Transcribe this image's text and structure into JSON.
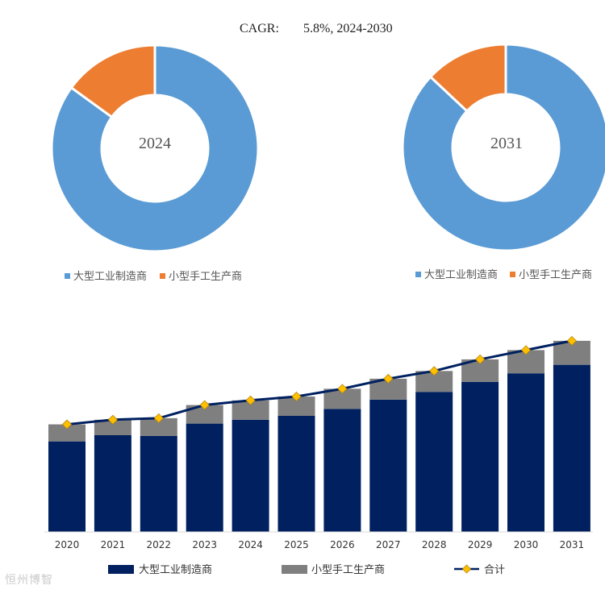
{
  "cagr": {
    "label": "CAGR:",
    "value": "5.8%, 2024-2030"
  },
  "colors": {
    "large": "#5b9bd5",
    "small": "#ed7d31",
    "bar_large": "#002060",
    "bar_small": "#7f7f7f",
    "line": "#002060",
    "marker": "#ffc000"
  },
  "chart_data": [
    {
      "type": "pie",
      "title": "2024",
      "labels": [
        "大型工业制造商",
        "小型手工生产商"
      ],
      "values": [
        85,
        15
      ]
    },
    {
      "type": "pie",
      "title": "2031",
      "labels": [
        "大型工业制造商",
        "小型手工生产商"
      ],
      "values": [
        87,
        13
      ]
    },
    {
      "type": "bar",
      "stacked": true,
      "categories": [
        "2020",
        "2021",
        "2022",
        "2023",
        "2024",
        "2025",
        "2026",
        "2027",
        "2028",
        "2029",
        "2030",
        "2031"
      ],
      "series": [
        {
          "name": "大型工业制造商",
          "values": [
            117,
            125,
            124,
            140,
            145,
            150,
            159,
            171,
            181,
            194,
            205,
            216
          ]
        },
        {
          "name": "小型手工生产商",
          "values": [
            22,
            20,
            23,
            24,
            25,
            25,
            26,
            27,
            27,
            29,
            30,
            31
          ]
        }
      ],
      "line": {
        "name": "合计",
        "values": [
          139,
          145,
          147,
          164,
          170,
          175,
          185,
          198,
          208,
          223,
          235,
          247
        ]
      },
      "ylim": [
        0,
        260
      ],
      "legend": "bottom"
    }
  ],
  "watermark": "恒州博智"
}
